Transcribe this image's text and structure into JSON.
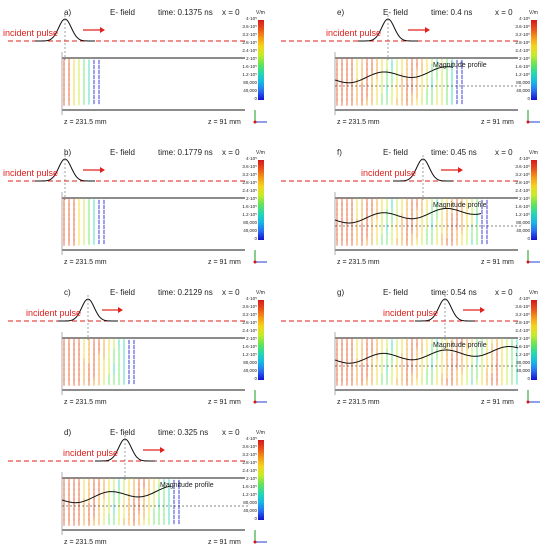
{
  "figure": {
    "common": {
      "field_label": "E- field",
      "time_prefix": "time:",
      "x_label": "x = 0",
      "incident": "incident pulse",
      "magnitude": "Magnitude profile",
      "z_left": "z = 231.5 mm",
      "z_right": "z = 91 mm",
      "unit": "V/m",
      "scale": [
        "4·10⁵",
        "3.6·10⁵",
        "3.2·10⁵",
        "2.8·10⁵",
        "2.4·10⁵",
        "2·10⁵",
        "1.6·10⁵",
        "1.2·10⁵",
        "80,000",
        "40,000",
        "0"
      ]
    },
    "panels": [
      {
        "id": "a",
        "label": "a)",
        "time": "0.1375 ns",
        "has_magnitude": false,
        "has_field_header": true,
        "has_xlabel": true
      },
      {
        "id": "b",
        "label": "b)",
        "time": "0.1779 ns",
        "has_magnitude": false,
        "has_field_header": true,
        "has_xlabel": true
      },
      {
        "id": "c",
        "label": "c)",
        "time": "0.2129 ns",
        "has_magnitude": false,
        "has_field_header": true,
        "has_xlabel": true
      },
      {
        "id": "d",
        "label": "d)",
        "time": "0.325 ns",
        "has_magnitude": true,
        "has_field_header": true,
        "has_xlabel": true
      },
      {
        "id": "e",
        "label": "e)",
        "time": "0.4 ns",
        "has_magnitude": true,
        "has_field_header": true,
        "has_xlabel": true
      },
      {
        "id": "f",
        "label": "f)",
        "time": "0.45 ns",
        "has_magnitude": true,
        "has_field_header": true,
        "has_xlabel": true
      },
      {
        "id": "g",
        "label": "g)",
        "time": "0.54 ns",
        "has_magnitude": true,
        "has_field_header": true,
        "has_xlabel": true
      }
    ],
    "colors": {
      "accent": "#e0201c",
      "structure": "#8c8c8c"
    }
  }
}
